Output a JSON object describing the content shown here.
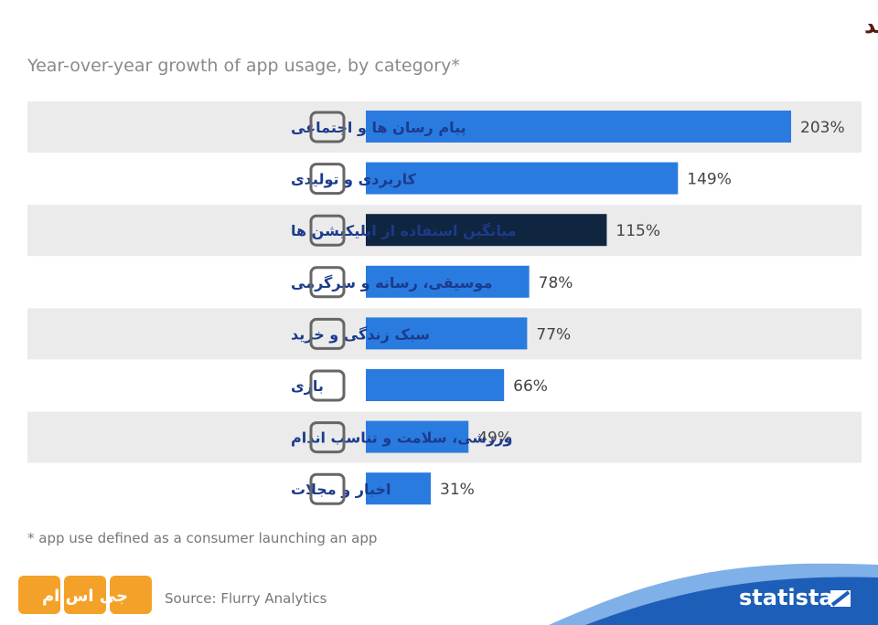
{
  "chart_data": {
    "type": "bar",
    "title": "اپلیکیشن های پیام رسان و اجتماعی بیشترین رشد را در سال های اخیر داشته اند",
    "subtitle": "Year-over-year growth of app usage, by category*",
    "categories": [
      "پیام رسان ها و اجتماعی",
      "کاربردی و تولیدی",
      "میانگین استفاده از اپلیکیشن ها",
      "موسیقی، رسانه و سرگرمی",
      "سبک زندگی و خرید",
      "بازی",
      "ورزشی، سلامت و تناسب اندام",
      "اخبار و مجلات"
    ],
    "values": [
      203,
      149,
      115,
      78,
      77,
      66,
      49,
      31
    ],
    "value_labels": [
      "203%",
      "149%",
      "115%",
      "78%",
      "77%",
      "66%",
      "49%",
      "31%"
    ],
    "colors": [
      "#2a7be0",
      "#2a7be0",
      "#10253f",
      "#2a7be0",
      "#2a7be0",
      "#2a7be0",
      "#2a7be0",
      "#2a7be0"
    ],
    "footnote": "* app use defined as a consumer launching an app",
    "source": "Source: Flurry Analytics",
    "brand": "statista",
    "logo": "جی اس ام"
  }
}
